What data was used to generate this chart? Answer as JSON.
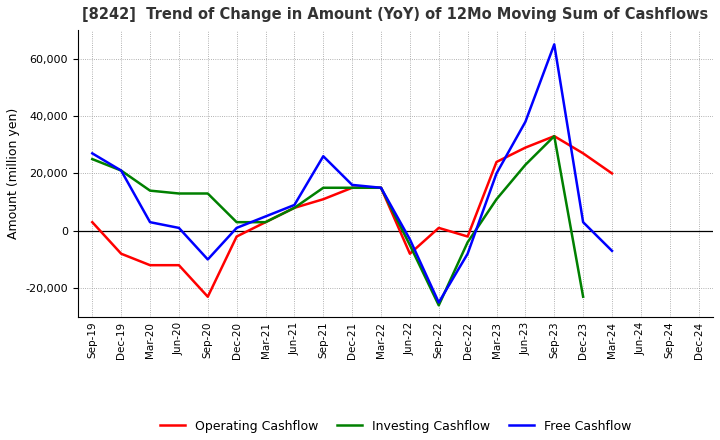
{
  "title": "[8242]  Trend of Change in Amount (YoY) of 12Mo Moving Sum of Cashflows",
  "ylabel": "Amount (million yen)",
  "x_labels": [
    "Sep-19",
    "Dec-19",
    "Mar-20",
    "Jun-20",
    "Sep-20",
    "Dec-20",
    "Mar-21",
    "Jun-21",
    "Sep-21",
    "Dec-21",
    "Mar-22",
    "Jun-22",
    "Sep-22",
    "Dec-22",
    "Mar-23",
    "Jun-23",
    "Sep-23",
    "Dec-23",
    "Mar-24",
    "Jun-24",
    "Sep-24",
    "Dec-24"
  ],
  "operating": [
    3000,
    -8000,
    -12000,
    -12000,
    -23000,
    -2000,
    3000,
    8000,
    11000,
    15000,
    15000,
    -8000,
    1000,
    -2000,
    24000,
    29000,
    33000,
    27000,
    20000,
    null,
    null,
    null
  ],
  "investing": [
    25000,
    21000,
    14000,
    13000,
    13000,
    3000,
    3000,
    8000,
    15000,
    15000,
    15000,
    -5000,
    -26000,
    -4000,
    11000,
    23000,
    33000,
    -23000,
    null,
    null,
    null,
    null
  ],
  "free": [
    27000,
    21000,
    3000,
    1000,
    -10000,
    1000,
    5000,
    9000,
    26000,
    16000,
    15000,
    -3000,
    -25000,
    -8000,
    20000,
    38000,
    65000,
    3000,
    -7000,
    null,
    null,
    null
  ],
  "operating_color": "#ff0000",
  "investing_color": "#008000",
  "free_color": "#0000ff",
  "ylim": [
    -30000,
    70000
  ],
  "yticks": [
    -20000,
    0,
    20000,
    40000,
    60000
  ],
  "background_color": "#ffffff",
  "grid_color": "#999999",
  "title_color": "#333333"
}
